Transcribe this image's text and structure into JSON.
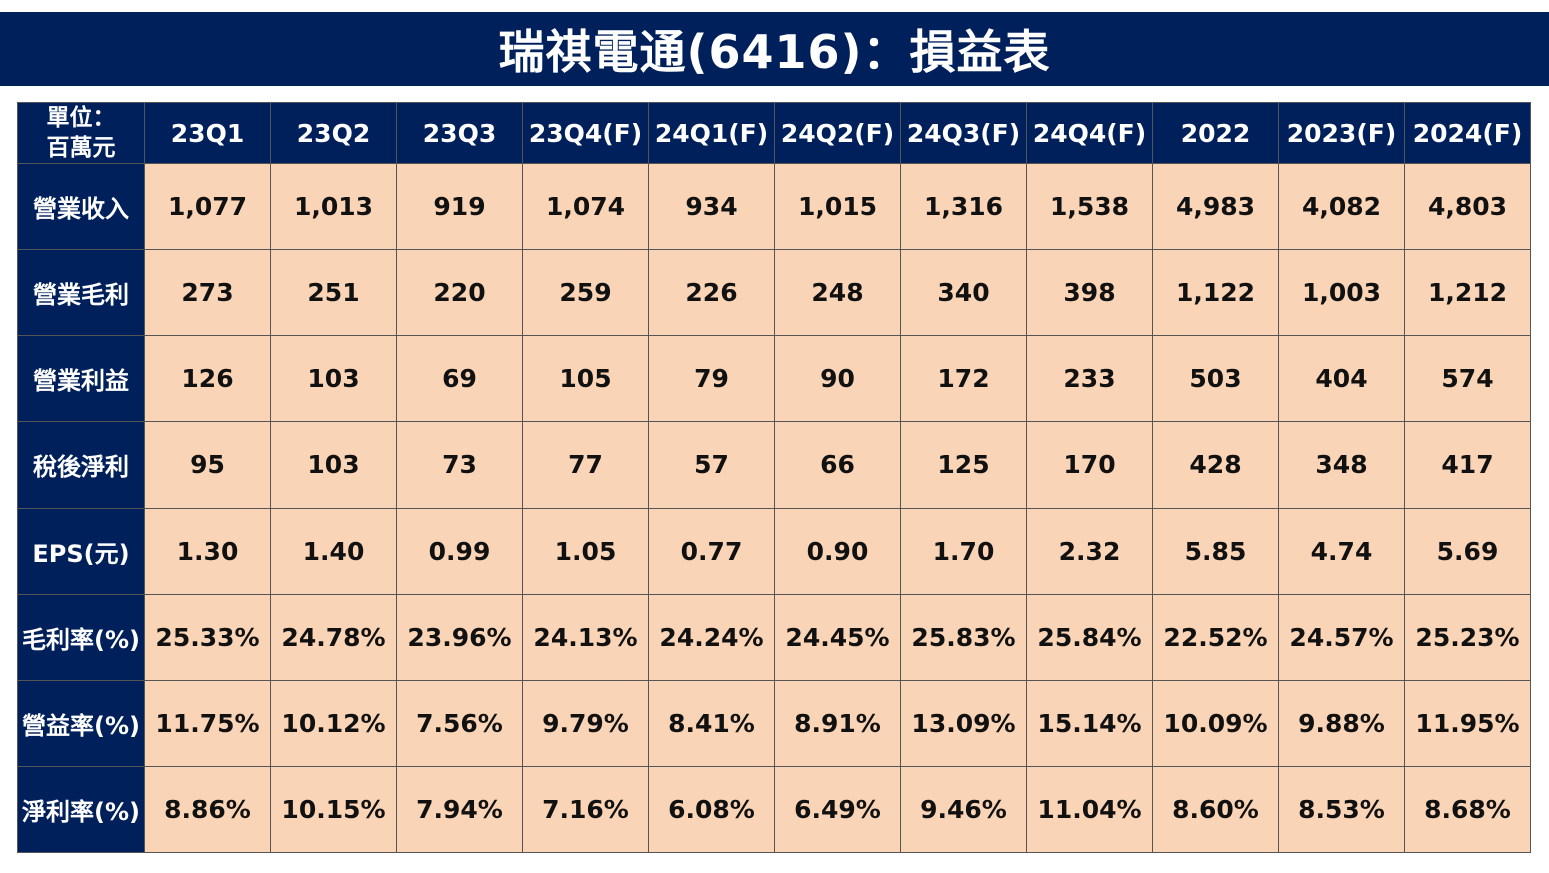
{
  "title": "瑞祺電通(6416)：損益表",
  "colors": {
    "header_bg": "#00205b",
    "cell_bg": "#f9d4b6",
    "header_text": "#ffffff"
  },
  "chart_data": {
    "type": "table",
    "corner_label": [
      "單位：",
      "百萬元"
    ],
    "columns": [
      "23Q1",
      "23Q2",
      "23Q3",
      "23Q4(F)",
      "24Q1(F)",
      "24Q2(F)",
      "24Q3(F)",
      "24Q4(F)",
      "2022",
      "2023(F)",
      "2024(F)"
    ],
    "rows": [
      {
        "label": "營業收入",
        "values": [
          "1,077",
          "1,013",
          "919",
          "1,074",
          "934",
          "1,015",
          "1,316",
          "1,538",
          "4,983",
          "4,082",
          "4,803"
        ]
      },
      {
        "label": "營業毛利",
        "values": [
          "273",
          "251",
          "220",
          "259",
          "226",
          "248",
          "340",
          "398",
          "1,122",
          "1,003",
          "1,212"
        ]
      },
      {
        "label": "營業利益",
        "values": [
          "126",
          "103",
          "69",
          "105",
          "79",
          "90",
          "172",
          "233",
          "503",
          "404",
          "574"
        ]
      },
      {
        "label": "稅後淨利",
        "values": [
          "95",
          "103",
          "73",
          "77",
          "57",
          "66",
          "125",
          "170",
          "428",
          "348",
          "417"
        ]
      },
      {
        "label": "EPS(元)",
        "values": [
          "1.30",
          "1.40",
          "0.99",
          "1.05",
          "0.77",
          "0.90",
          "1.70",
          "2.32",
          "5.85",
          "4.74",
          "5.69"
        ]
      },
      {
        "label": "毛利率(%)",
        "values": [
          "25.33%",
          "24.78%",
          "23.96%",
          "24.13%",
          "24.24%",
          "24.45%",
          "25.83%",
          "25.84%",
          "22.52%",
          "24.57%",
          "25.23%"
        ]
      },
      {
        "label": "營益率(%)",
        "values": [
          "11.75%",
          "10.12%",
          "7.56%",
          "9.79%",
          "8.41%",
          "8.91%",
          "13.09%",
          "15.14%",
          "10.09%",
          "9.88%",
          "11.95%"
        ]
      },
      {
        "label": "淨利率(%)",
        "values": [
          "8.86%",
          "10.15%",
          "7.94%",
          "7.16%",
          "6.08%",
          "6.49%",
          "9.46%",
          "11.04%",
          "8.60%",
          "8.53%",
          "8.68%"
        ]
      }
    ]
  }
}
